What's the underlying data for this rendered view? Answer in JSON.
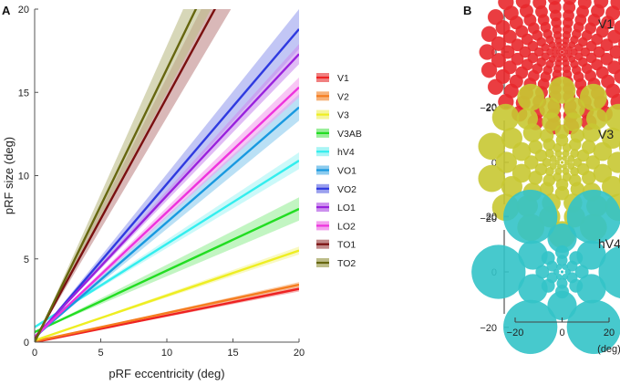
{
  "chart_data": [
    {
      "panel": "A",
      "type": "line",
      "title": "",
      "xlabel": "pRF eccentricity (deg)",
      "ylabel": "pRF size (deg)",
      "xlim": [
        0,
        20
      ],
      "ylim": [
        0,
        20
      ],
      "xticks": [
        "0",
        "5",
        "10",
        "15",
        "20"
      ],
      "yticks": [
        "0",
        "5",
        "10",
        "15",
        "20"
      ],
      "legend_position": "right",
      "series": [
        {
          "name": "V1",
          "color": "#ee2222",
          "band": "#f08080",
          "intercept": 0.0,
          "slope": 0.16,
          "ci_slope": 0.008
        },
        {
          "name": "V2",
          "color": "#f57c1f",
          "band": "#f7b27a",
          "intercept": 0.05,
          "slope": 0.17,
          "ci_slope": 0.008
        },
        {
          "name": "V3",
          "color": "#eeee22",
          "band": "#f5f59a",
          "intercept": 0.1,
          "slope": 0.27,
          "ci_slope": 0.012
        },
        {
          "name": "V3AB",
          "color": "#22dd22",
          "band": "#99ee99",
          "intercept": 0.6,
          "slope": 0.37,
          "ci_slope": 0.035
        },
        {
          "name": "hV4",
          "color": "#33eeee",
          "band": "#a8f5f5",
          "intercept": 0.9,
          "slope": 0.5,
          "ci_slope": 0.025
        },
        {
          "name": "VO1",
          "color": "#1899e0",
          "band": "#8ccbee",
          "intercept": 0.3,
          "slope": 0.69,
          "ci_slope": 0.04
        },
        {
          "name": "VO2",
          "color": "#2f3ae0",
          "band": "#9aa0ee",
          "intercept": 0.2,
          "slope": 0.93,
          "ci_slope": 0.06
        },
        {
          "name": "LO1",
          "color": "#9922dd",
          "band": "#cc90ee",
          "intercept": 0.3,
          "slope": 0.85,
          "ci_slope": 0.03
        },
        {
          "name": "LO2",
          "color": "#ee33dd",
          "band": "#f3a0ee",
          "intercept": 0.3,
          "slope": 0.75,
          "ci_slope": 0.03
        },
        {
          "name": "TO1",
          "color": "#7a1010",
          "band": "#c08888",
          "intercept": 0.1,
          "slope": 1.46,
          "ci_slope": 0.12
        },
        {
          "name": "TO2",
          "color": "#66660f",
          "band": "#bcbc88",
          "intercept": 0.0,
          "slope": 1.64,
          "ci_slope": 0.14
        }
      ]
    },
    {
      "panel": "B",
      "type": "scatter",
      "xlabel": "(deg)",
      "xticks": [
        "−20",
        "0",
        "20"
      ],
      "xlim": [
        -20,
        20
      ],
      "ylim": [
        -20,
        20
      ],
      "maps": [
        {
          "name": "V1",
          "color": "#e8282c",
          "yticks": [
            "20",
            "0",
            "−20"
          ],
          "rings": [
            {
              "ecc": 0.8,
              "n": 6
            },
            {
              "ecc": 1.6,
              "n": 8
            },
            {
              "ecc": 2.5,
              "n": 10
            },
            {
              "ecc": 3.6,
              "n": 12
            },
            {
              "ecc": 4.8,
              "n": 14
            },
            {
              "ecc": 6.2,
              "n": 16
            },
            {
              "ecc": 7.7,
              "n": 18
            },
            {
              "ecc": 9.4,
              "n": 20
            },
            {
              "ecc": 11.3,
              "n": 22
            },
            {
              "ecc": 13.3,
              "n": 24
            },
            {
              "ecc": 15.6,
              "n": 26
            }
          ]
        },
        {
          "name": "V3",
          "color": "#c8c832",
          "yticks": [
            "20",
            "0",
            "−20"
          ],
          "rings": [
            {
              "ecc": 1.0,
              "n": 6
            },
            {
              "ecc": 2.0,
              "n": 8
            },
            {
              "ecc": 3.2,
              "n": 10
            },
            {
              "ecc": 4.6,
              "n": 10
            },
            {
              "ecc": 6.4,
              "n": 12
            },
            {
              "ecc": 8.7,
              "n": 12
            },
            {
              "ecc": 11.6,
              "n": 14
            },
            {
              "ecc": 15.0,
              "n": 14
            }
          ]
        },
        {
          "name": "hV4",
          "color": "#33c3c8",
          "yticks": [
            "20",
            "0",
            "−20"
          ],
          "rings": [
            {
              "ecc": 1.2,
              "n": 6
            },
            {
              "ecc": 2.4,
              "n": 6
            },
            {
              "ecc": 4.1,
              "n": 8
            },
            {
              "ecc": 7.0,
              "n": 6
            },
            {
              "ecc": 13.2,
              "n": 6
            }
          ]
        }
      ]
    }
  ],
  "panel_labels": {
    "a": "A",
    "b": "B"
  }
}
